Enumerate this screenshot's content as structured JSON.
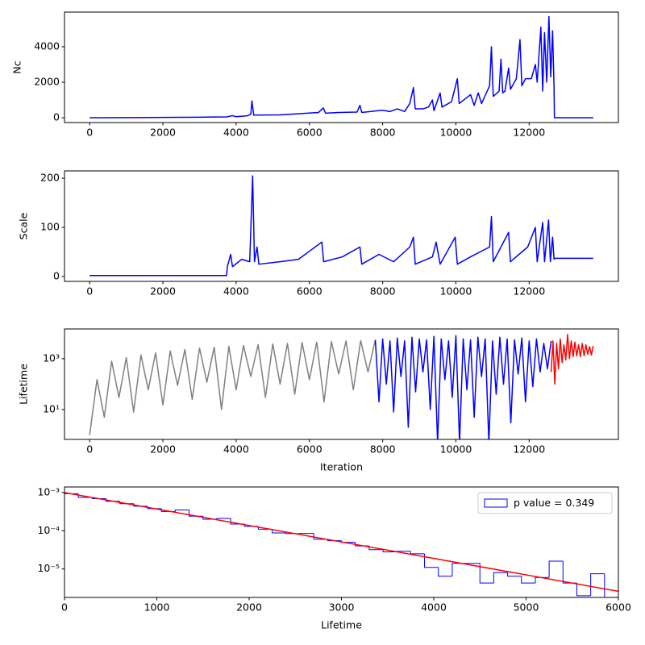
{
  "chart_data": [
    {
      "type": "line",
      "ylabel": "Nc",
      "color": "#0000ff",
      "xlim": [
        -687,
        14437
      ],
      "xticks": [
        0,
        2000,
        4000,
        6000,
        8000,
        10000,
        12000
      ],
      "ylim": [
        -270,
        5950
      ],
      "yticks": [
        0,
        2000,
        4000
      ],
      "x": [
        0,
        1000,
        2000,
        3000,
        3750,
        3900,
        4000,
        4300,
        4400,
        4430,
        4480,
        5200,
        5500,
        5900,
        6250,
        6380,
        6440,
        6800,
        7300,
        7380,
        7430,
        7800,
        8000,
        8200,
        8400,
        8600,
        8740,
        8840,
        8890,
        9100,
        9250,
        9360,
        9400,
        9570,
        9620,
        9880,
        10040,
        10090,
        10400,
        10500,
        10610,
        10700,
        10920,
        10970,
        11020,
        11180,
        11230,
        11280,
        11340,
        11440,
        11490,
        11650,
        11750,
        11800,
        11900,
        12060,
        12170,
        12220,
        12320,
        12370,
        12420,
        12480,
        12540,
        12590,
        12640,
        12680,
        12690,
        13750
      ],
      "values": [
        0,
        10,
        20,
        30,
        50,
        120,
        60,
        110,
        200,
        950,
        150,
        160,
        200,
        250,
        300,
        550,
        260,
        300,
        320,
        700,
        300,
        380,
        420,
        350,
        500,
        350,
        800,
        1700,
        500,
        500,
        600,
        1000,
        400,
        1400,
        600,
        900,
        2200,
        800,
        1300,
        700,
        1400,
        800,
        1800,
        4000,
        1200,
        1500,
        3300,
        1400,
        1500,
        2800,
        1600,
        2200,
        4400,
        1800,
        2200,
        2200,
        3000,
        2000,
        5100,
        1500,
        4800,
        2000,
        5700,
        2300,
        4900,
        1700,
        0,
        0
      ]
    },
    {
      "type": "line",
      "ylabel": "Scale",
      "color": "#0000ff",
      "xlim": [
        -687,
        14437
      ],
      "xticks": [
        0,
        2000,
        4000,
        6000,
        8000,
        10000,
        12000
      ],
      "ylim": [
        -10,
        215
      ],
      "yticks": [
        0,
        100,
        200
      ],
      "x": [
        0,
        3740,
        3760,
        3850,
        3900,
        4150,
        4370,
        4450,
        4500,
        4570,
        4620,
        5200,
        5700,
        6340,
        6390,
        6900,
        7380,
        7430,
        7900,
        8300,
        8740,
        8840,
        8890,
        9360,
        9460,
        9570,
        9980,
        10040,
        10400,
        10920,
        10970,
        11020,
        11440,
        11490,
        11960,
        12170,
        12220,
        12370,
        12420,
        12530,
        12580,
        12640,
        12680,
        12690,
        13750
      ],
      "values": [
        2,
        2,
        20,
        45,
        20,
        35,
        30,
        205,
        30,
        60,
        25,
        30,
        35,
        70,
        30,
        40,
        60,
        25,
        45,
        30,
        60,
        80,
        25,
        40,
        70,
        25,
        80,
        25,
        40,
        60,
        122,
        30,
        90,
        30,
        60,
        100,
        30,
        110,
        30,
        115,
        30,
        80,
        35,
        37,
        37
      ]
    },
    {
      "type": "line",
      "ylabel": "Lifetime",
      "xlabel": "Iteration",
      "ylog": true,
      "xlim": [
        -687,
        14437
      ],
      "xticks": [
        0,
        2000,
        4000,
        6000,
        8000,
        10000,
        12000
      ],
      "ylim": [
        0.67,
        14800
      ],
      "yticks": [
        {
          "value": 10,
          "label": "10¹"
        },
        {
          "value": 1000,
          "label": "10³"
        }
      ],
      "series": [
        {
          "color": "#808080",
          "x": [
            0,
            200,
            400,
            600,
            800,
            1000,
            1200,
            1400,
            1600,
            1800,
            2000,
            2200,
            2400,
            2600,
            2800,
            3000,
            3200,
            3400,
            3600,
            3800,
            4000,
            4200,
            4400,
            4600,
            4800,
            5000,
            5200,
            5400,
            5600,
            5800,
            6000,
            6200,
            6400,
            6600,
            6800,
            7000,
            7200,
            7400,
            7600,
            7800
          ],
          "values": [
            1,
            150,
            5,
            800,
            30,
            1100,
            8,
            1400,
            60,
            1700,
            15,
            2000,
            90,
            2300,
            25,
            2600,
            120,
            2800,
            10,
            3100,
            60,
            3300,
            200,
            3600,
            30,
            3800,
            100,
            4000,
            40,
            4300,
            150,
            4500,
            20,
            4700,
            250,
            5000,
            60,
            5200,
            300,
            5500
          ]
        },
        {
          "color": "#0000ff",
          "x": [
            7800,
            7900,
            8000,
            8100,
            8200,
            8300,
            8400,
            8500,
            8600,
            8700,
            8800,
            8900,
            9000,
            9100,
            9200,
            9300,
            9400,
            9500,
            9600,
            9700,
            9800,
            9900,
            10000,
            10100,
            10200,
            10300,
            10400,
            10500,
            10600,
            10700,
            10800,
            10900,
            11000,
            11100,
            11200,
            11300,
            11400,
            11500,
            11600,
            11700,
            11800,
            11900,
            12000,
            12100,
            12200,
            12300,
            12400,
            12500,
            12600
          ],
          "values": [
            5500,
            20,
            6000,
            100,
            5000,
            8,
            6500,
            200,
            5000,
            2,
            7000,
            50,
            6000,
            300,
            5500,
            10,
            7500,
            0.5,
            6000,
            150,
            5000,
            30,
            8000,
            0.5,
            6000,
            60,
            5500,
            5,
            7000,
            200,
            6000,
            0.5,
            5000,
            40,
            7000,
            100,
            6000,
            3,
            5500,
            250,
            6500,
            20,
            5000,
            80,
            6000,
            300,
            4000,
            400,
            5000
          ]
        },
        {
          "color": "#ff0000",
          "x": [
            12600,
            12650,
            12700,
            12750,
            12800,
            12850,
            12900,
            12950,
            13000,
            13050,
            13100,
            13150,
            13200,
            13250,
            13300,
            13350,
            13400,
            13450,
            13500,
            13550,
            13600,
            13650,
            13700,
            13750
          ],
          "values": [
            300,
            5000,
            100,
            4000,
            400,
            6000,
            700,
            3500,
            900,
            9000,
            1000,
            5000,
            1200,
            4500,
            1300,
            3500,
            1200,
            4000,
            1300,
            3500,
            1500,
            3000,
            1400,
            3200
          ]
        }
      ]
    },
    {
      "type": "histogram",
      "xlabel": "Lifetime",
      "ylog": true,
      "color": "#0000ff",
      "label": "p value = 0.349",
      "legend": "upper right",
      "xlim": [
        0,
        6000
      ],
      "xticks": [
        0,
        1000,
        2000,
        3000,
        4000,
        5000,
        6000
      ],
      "ylim": [
        1.8e-06,
        0.0014
      ],
      "yticks": [
        {
          "value": 1e-05,
          "label": "10⁻⁵"
        },
        {
          "value": 0.0001,
          "label": "10⁻⁴"
        },
        {
          "value": 0.001,
          "label": "10⁻³"
        }
      ],
      "bins": [
        0,
        150,
        300,
        450,
        600,
        750,
        900,
        1050,
        1200,
        1350,
        1500,
        1650,
        1800,
        1950,
        2100,
        2250,
        2400,
        2550,
        2700,
        2850,
        3000,
        3150,
        3300,
        3450,
        3600,
        3750,
        3900,
        4050,
        4200,
        4350,
        4500,
        4650,
        4800,
        4950,
        5100,
        5250,
        5400,
        5550,
        5700,
        5850,
        6000
      ],
      "counts": [
        0.00093,
        0.00075,
        0.00069,
        0.00059,
        0.00051,
        0.00044,
        0.00038,
        0.00032,
        0.00035,
        0.00024,
        0.0002,
        0.00021,
        0.00015,
        0.00013,
        0.00011,
        8.8e-05,
        8.4e-05,
        8.5e-05,
        6e-05,
        5.5e-05,
        5e-05,
        4e-05,
        3.2e-05,
        2.8e-05,
        2.9e-05,
        2.5e-05,
        1.1e-05,
        6.5e-06,
        1.4e-05,
        1.4e-05,
        4.3e-06,
        8e-06,
        6.5e-06,
        4.3e-06,
        6e-06,
        1.6e-05,
        4.3e-06,
        2e-06,
        7.5e-06,
        1.8e-06
      ],
      "fit": {
        "color": "#ff0000",
        "x": [
          0,
          6000
        ],
        "values": [
          0.001,
          2.6e-06
        ]
      }
    }
  ]
}
